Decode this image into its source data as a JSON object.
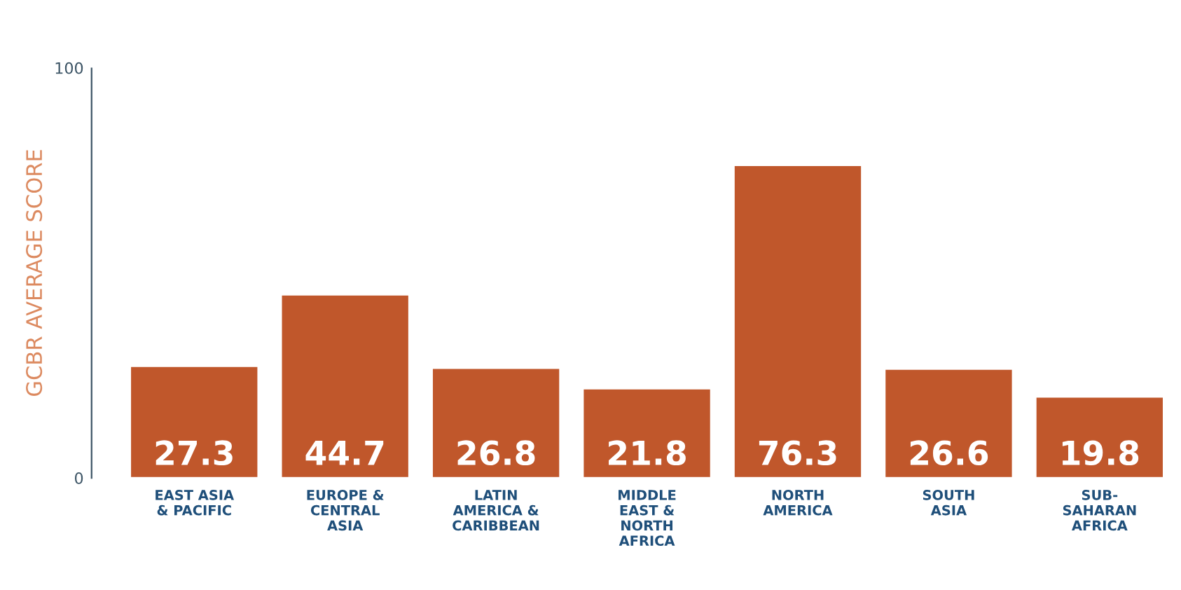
{
  "chart_data": {
    "type": "bar",
    "ylabel": "GCBR AVERAGE SCORE",
    "categories": [
      "EAST ASIA\n& PACIFIC",
      "EUROPE &\nCENTRAL\nASIA",
      "LATIN\nAMERICA &\nCARIBBEAN",
      "MIDDLE\nEAST &\nNORTH\nAFRICA",
      "NORTH\nAMERICA",
      "SOUTH\nASIA",
      "SUB-\nSAHARAN\nAFRICA"
    ],
    "values": [
      27.3,
      44.7,
      26.8,
      21.8,
      76.3,
      26.6,
      19.8
    ],
    "color": "#c0572b",
    "ylim": [
      0,
      100
    ],
    "yticks": [
      0,
      100
    ],
    "grid": false,
    "data_labels": true
  }
}
